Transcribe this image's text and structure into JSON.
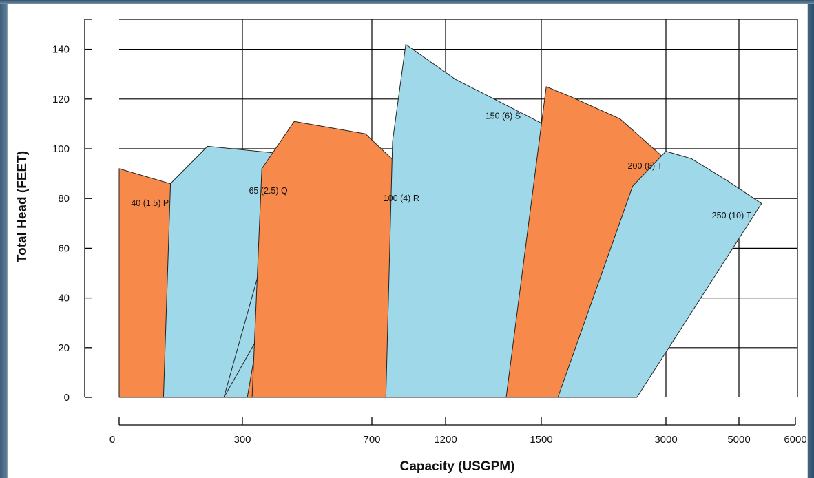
{
  "chart_data": {
    "type": "area",
    "xlabel": "Capacity (USGPM)",
    "ylabel": "Total Head (FEET)",
    "x_tick_labels": [
      "0",
      "300",
      "700",
      "1200",
      "1500",
      "3000",
      "5000",
      "6000"
    ],
    "y_ticks": [
      0,
      20,
      40,
      60,
      80,
      100,
      120,
      140
    ],
    "ylim": [
      0,
      150
    ],
    "x_scale": "non-uniform (log-like)",
    "grid": true,
    "colors": {
      "orange": "#f7894a",
      "blue": "#9fd8e9",
      "grid": "#000000"
    },
    "series": [
      {
        "name": "40 (1.5) P",
        "color": "orange",
        "x": [
          0,
          0,
          145,
          225,
          355
        ],
        "y": [
          0,
          92,
          85,
          80,
          0
        ]
      },
      {
        "name": "65 (2.5) Q",
        "color": "blue",
        "x": [
          108,
          125,
          215,
          425,
          640,
          255,
          430,
          400,
          315,
          40
        ],
        "y": [
          0,
          86,
          101,
          98,
          91,
          0,
          87,
          64,
          0,
          0
        ]
      },
      {
        "name": "100 (4) R",
        "color": "orange",
        "x": [
          330,
          360,
          460,
          680,
          1120,
          1230
        ],
        "y": [
          0,
          92,
          111,
          106,
          80,
          0
        ]
      },
      {
        "name": "150 (6) S",
        "color": "blue",
        "x": [
          795,
          840,
          930,
          1230,
          1520,
          1420
        ],
        "y": [
          0,
          103,
          142,
          128,
          110,
          0
        ]
      },
      {
        "name": "200 (8) T",
        "color": "orange",
        "x": [
          1390,
          1560,
          1850,
          2450,
          3200,
          1780
        ],
        "y": [
          0,
          125,
          121,
          112,
          93,
          0
        ]
      },
      {
        "name": "250 (10) T",
        "color": "blue",
        "x": [
          1700,
          2600,
          3000,
          3700,
          4700,
          5400,
          2650
        ],
        "y": [
          0,
          85,
          99,
          96,
          87,
          78,
          0
        ]
      }
    ]
  }
}
